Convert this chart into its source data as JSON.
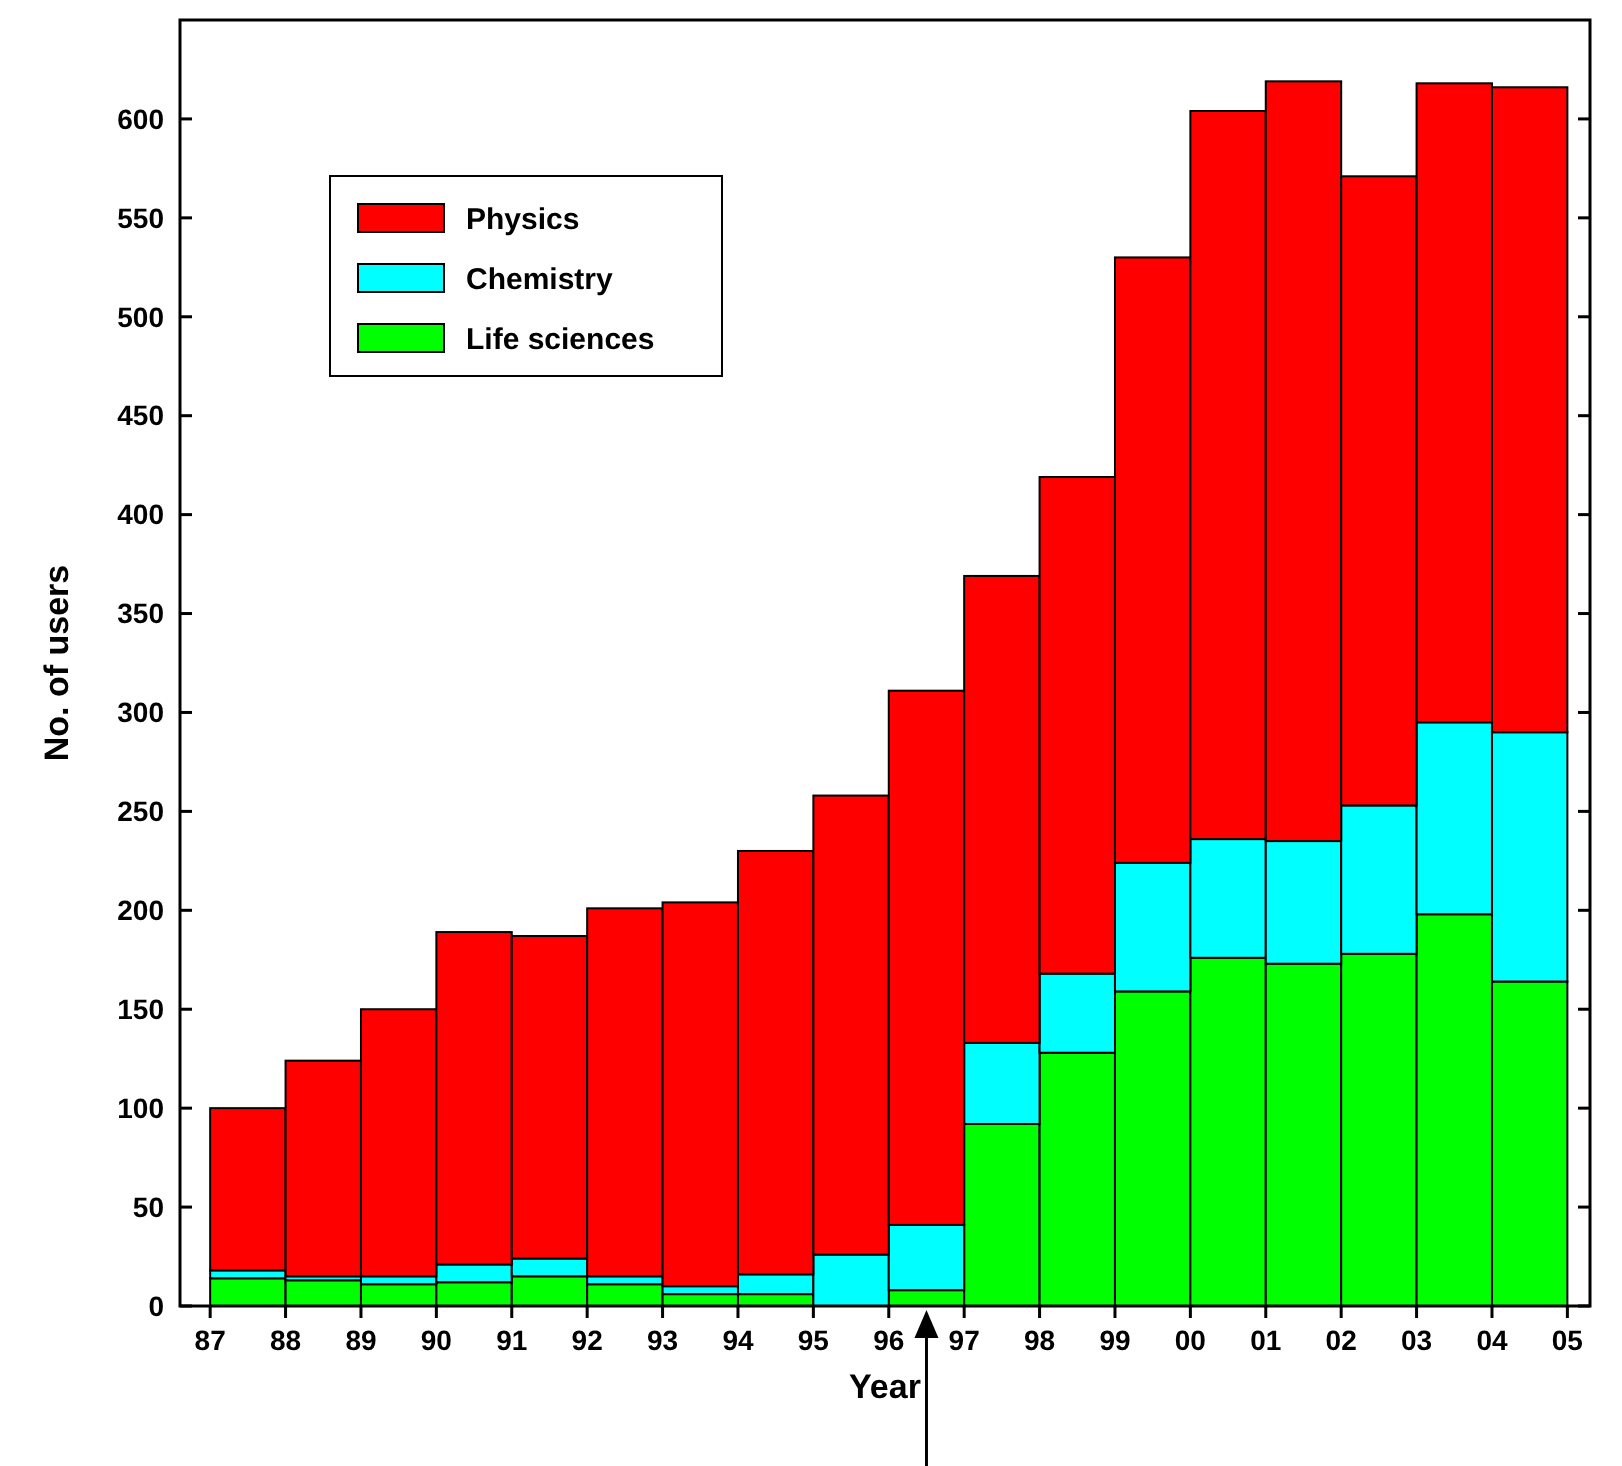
{
  "chart_data": {
    "type": "bar",
    "stacked": true,
    "xlabel": "Year",
    "ylabel": "No. of users",
    "x": [
      1987.5,
      1988.5,
      1989.5,
      1990.5,
      1991.5,
      1992.5,
      1993.5,
      1994.5,
      1995.5,
      1996.5,
      1997.5,
      1998.5,
      1999.5,
      2000.5,
      2001.5,
      2002.5,
      2003.5,
      2004.5
    ],
    "xlim": [
      1986.6,
      2005.3
    ],
    "xticks": [
      {
        "value": 1987,
        "label": "87"
      },
      {
        "value": 1988,
        "label": "88"
      },
      {
        "value": 1989,
        "label": "89"
      },
      {
        "value": 1990,
        "label": "90"
      },
      {
        "value": 1991,
        "label": "91"
      },
      {
        "value": 1992,
        "label": "92"
      },
      {
        "value": 1993,
        "label": "93"
      },
      {
        "value": 1994,
        "label": "94"
      },
      {
        "value": 1995,
        "label": "95"
      },
      {
        "value": 1996,
        "label": "96"
      },
      {
        "value": 1997,
        "label": "97"
      },
      {
        "value": 1998,
        "label": "98"
      },
      {
        "value": 1999,
        "label": "99"
      },
      {
        "value": 2000,
        "label": "00"
      },
      {
        "value": 2001,
        "label": "01"
      },
      {
        "value": 2002,
        "label": "02"
      },
      {
        "value": 2003,
        "label": "03"
      },
      {
        "value": 2004,
        "label": "04"
      },
      {
        "value": 2005,
        "label": "05"
      }
    ],
    "ylim": [
      0,
      650
    ],
    "yticks": [
      0,
      50,
      100,
      150,
      200,
      250,
      300,
      350,
      400,
      450,
      500,
      550,
      600
    ],
    "series": [
      {
        "name": "Life sciences",
        "color": "#00ff00",
        "values": [
          14,
          13,
          11,
          12,
          15,
          11,
          6,
          6,
          null,
          8,
          92,
          128,
          159,
          176,
          173,
          178,
          198,
          164
        ]
      },
      {
        "name": "Chemistry",
        "color": "#00ffff",
        "values": [
          4,
          2,
          4,
          9,
          9,
          4,
          4,
          10,
          26,
          33,
          41,
          40,
          65,
          60,
          62,
          75,
          97,
          126
        ]
      },
      {
        "name": "Physics",
        "color": "#ff0000",
        "values": [
          82,
          109,
          135,
          168,
          163,
          186,
          194,
          214,
          232,
          270,
          236,
          251,
          306,
          368,
          384,
          318,
          323,
          326
        ]
      }
    ],
    "legend": "top left",
    "grid": false
  }
}
